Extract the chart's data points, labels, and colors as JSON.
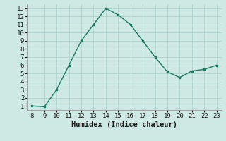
{
  "x": [
    8,
    9,
    10,
    11,
    12,
    13,
    14,
    15,
    16,
    17,
    18,
    19,
    20,
    21,
    22,
    23
  ],
  "y": [
    1.0,
    0.9,
    3.0,
    6.0,
    9.0,
    11.0,
    13.0,
    12.2,
    11.0,
    9.0,
    7.0,
    5.2,
    4.5,
    5.3,
    5.5,
    6.0
  ],
  "line_color": "#1c7a63",
  "marker_color": "#1c7a63",
  "bg_color": "#cee9e3",
  "grid_color": "#b0d4ce",
  "xlabel": "Humidex (Indice chaleur)",
  "xlabel_fontsize": 7.5,
  "tick_fontsize": 6.5,
  "xlim": [
    7.6,
    23.4
  ],
  "ylim": [
    0.5,
    13.5
  ],
  "yticks": [
    1,
    2,
    3,
    4,
    5,
    6,
    7,
    8,
    9,
    10,
    11,
    12,
    13
  ],
  "xticks": [
    8,
    9,
    10,
    11,
    12,
    13,
    14,
    15,
    16,
    17,
    18,
    19,
    20,
    21,
    22,
    23
  ]
}
